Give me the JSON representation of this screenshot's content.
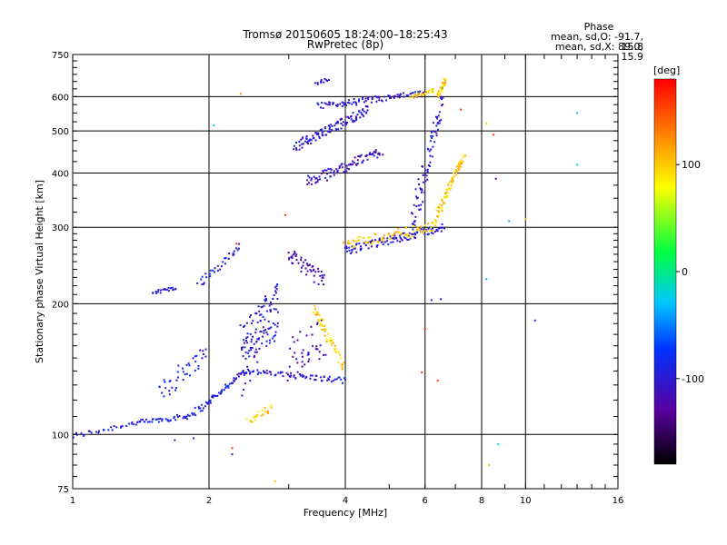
{
  "title_line1": "Tromsø 20150605 18:24:00–18:25:43",
  "title_line2": "RwPretec (8p)",
  "phase_box": {
    "heading": "Phase",
    "o_line": "mean, sd,O: -91.7, 15.8",
    "x_line": "mean, sd,X:  89.0, 15.9"
  },
  "chart_data": {
    "type": "scatter",
    "xlabel": "Frequency [MHz]",
    "ylabel": "Stationary phase Virtual Height [km]",
    "xscale": "log",
    "yscale": "log",
    "xlim": [
      1,
      16
    ],
    "ylim": [
      75,
      750
    ],
    "xticks": [
      1,
      2,
      4,
      6,
      8,
      10,
      16
    ],
    "yticks": [
      75,
      100,
      200,
      300,
      400,
      500,
      600,
      750
    ],
    "colorbar": {
      "label": "[deg]",
      "range": [
        -180,
        180
      ],
      "ticks": [
        100,
        0,
        -100
      ]
    },
    "grid": true,
    "traces": [
      {
        "x0": 1.0,
        "x1": 1.35,
        "y0": 99,
        "y1": 106,
        "phase": -95,
        "n": 25,
        "spread": 1.5
      },
      {
        "x0": 1.35,
        "x1": 1.78,
        "y0": 106,
        "y1": 110,
        "phase": -95,
        "n": 40,
        "spread": 1.5
      },
      {
        "x0": 1.78,
        "x1": 2.0,
        "y0": 110,
        "y1": 118,
        "phase": -95,
        "n": 22,
        "spread": 2
      },
      {
        "x0": 2.0,
        "x1": 2.4,
        "y0": 119,
        "y1": 140,
        "phase": -95,
        "n": 45,
        "spread": 2
      },
      {
        "x0": 2.4,
        "x1": 4.0,
        "y0": 140,
        "y1": 133,
        "phase": -100,
        "n": 70,
        "spread": 2
      },
      {
        "x0": 1.55,
        "x1": 1.98,
        "y0": 125,
        "y1": 155,
        "phase": -95,
        "n": 40,
        "spread": 8
      },
      {
        "x0": 1.5,
        "x1": 1.7,
        "y0": 212,
        "y1": 218,
        "phase": -95,
        "n": 20,
        "spread": 2
      },
      {
        "x0": 1.9,
        "x1": 2.35,
        "y0": 222,
        "y1": 270,
        "phase": -95,
        "n": 35,
        "spread": 6
      },
      {
        "x0": 2.35,
        "x1": 2.85,
        "y0": 150,
        "y1": 200,
        "phase": -100,
        "n": 120,
        "spread": 28
      },
      {
        "x0": 2.45,
        "x1": 2.75,
        "y0": 108,
        "y1": 115,
        "phase": 100,
        "n": 22,
        "spread": 2
      },
      {
        "x0": 3.0,
        "x1": 3.6,
        "y0": 260,
        "y1": 225,
        "phase": -120,
        "n": 50,
        "spread": 10
      },
      {
        "x0": 3.0,
        "x1": 3.6,
        "y0": 150,
        "y1": 170,
        "phase": -120,
        "n": 40,
        "spread": 18
      },
      {
        "x0": 3.4,
        "x1": 3.95,
        "y0": 195,
        "y1": 145,
        "phase": 100,
        "n": 50,
        "spread": 4
      },
      {
        "x0": 3.3,
        "x1": 4.8,
        "y0": 380,
        "y1": 450,
        "phase": -110,
        "n": 90,
        "spread": 12
      },
      {
        "x0": 3.1,
        "x1": 4.5,
        "y0": 460,
        "y1": 560,
        "phase": -105,
        "n": 110,
        "spread": 12
      },
      {
        "x0": 3.5,
        "x1": 6.0,
        "y0": 570,
        "y1": 610,
        "phase": -105,
        "n": 90,
        "spread": 10
      },
      {
        "x0": 3.45,
        "x1": 3.65,
        "y0": 640,
        "y1": 660,
        "phase": -105,
        "n": 12,
        "spread": 6
      },
      {
        "x0": 4.0,
        "x1": 6.6,
        "y0": 265,
        "y1": 300,
        "phase": -100,
        "n": 110,
        "spread": 6
      },
      {
        "x0": 5.6,
        "x1": 6.6,
        "y0": 300,
        "y1": 600,
        "phase": -105,
        "n": 80,
        "spread": 30
      },
      {
        "x0": 6.4,
        "x1": 6.7,
        "y0": 600,
        "y1": 660,
        "phase": 100,
        "n": 25,
        "spread": 6
      },
      {
        "x0": 4.0,
        "x1": 6.3,
        "y0": 275,
        "y1": 300,
        "phase": 100,
        "n": 70,
        "spread": 8
      },
      {
        "x0": 6.3,
        "x1": 7.3,
        "y0": 310,
        "y1": 440,
        "phase": 100,
        "n": 70,
        "spread": 6
      },
      {
        "x0": 5.6,
        "x1": 6.3,
        "y0": 600,
        "y1": 620,
        "phase": 100,
        "n": 25,
        "spread": 6
      }
    ],
    "isolated_points": [
      {
        "x": 2.35,
        "y": 609,
        "phase": 120
      },
      {
        "x": 2.05,
        "y": 515,
        "phase": -30
      },
      {
        "x": 2.3,
        "y": 275,
        "phase": 160
      },
      {
        "x": 2.95,
        "y": 320,
        "phase": 160
      },
      {
        "x": 2.25,
        "y": 90,
        "phase": -100
      },
      {
        "x": 2.25,
        "y": 93,
        "phase": 160
      },
      {
        "x": 2.8,
        "y": 78,
        "phase": 100
      },
      {
        "x": 1.68,
        "y": 97,
        "phase": -100
      },
      {
        "x": 1.85,
        "y": 98,
        "phase": -100
      },
      {
        "x": 8.2,
        "y": 520,
        "phase": 100
      },
      {
        "x": 8.5,
        "y": 490,
        "phase": 160
      },
      {
        "x": 8.6,
        "y": 388,
        "phase": -140
      },
      {
        "x": 8.2,
        "y": 228,
        "phase": -40
      },
      {
        "x": 8.7,
        "y": 95,
        "phase": -30
      },
      {
        "x": 9.2,
        "y": 310,
        "phase": -40
      },
      {
        "x": 10.0,
        "y": 313,
        "phase": 100
      },
      {
        "x": 10.5,
        "y": 183,
        "phase": -90
      },
      {
        "x": 13.0,
        "y": 550,
        "phase": -30
      },
      {
        "x": 13.0,
        "y": 418,
        "phase": -30
      },
      {
        "x": 6.0,
        "y": 175,
        "phase": 160
      },
      {
        "x": 6.2,
        "y": 204,
        "phase": -100
      },
      {
        "x": 5.9,
        "y": 139,
        "phase": 160
      },
      {
        "x": 6.4,
        "y": 133,
        "phase": 160
      },
      {
        "x": 7.2,
        "y": 560,
        "phase": 160
      },
      {
        "x": 8.3,
        "y": 85,
        "phase": 100
      },
      {
        "x": 6.5,
        "y": 205,
        "phase": -100
      }
    ]
  }
}
